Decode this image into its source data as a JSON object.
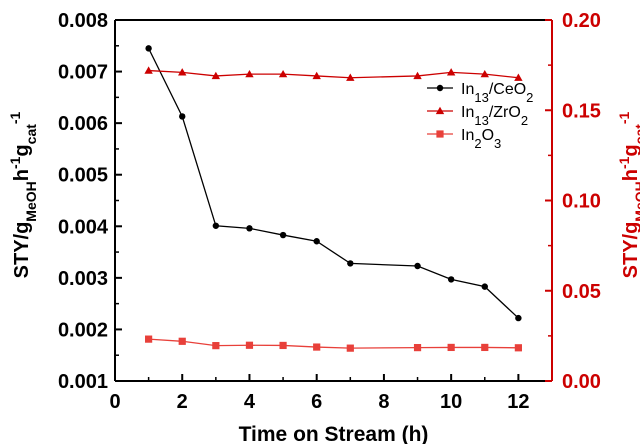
{
  "chart_data": {
    "type": "line",
    "xlabel": "Time on Stream (h)",
    "ylabel_left": {
      "base": "STY/g",
      "sub1": "MeOH",
      "mid1": "h",
      "sup1": "-1",
      "mid2": "g",
      "sub2": "cat",
      "sup2": "-1"
    },
    "ylabel_right": {
      "base": "STY/g",
      "sub1": "MeOH",
      "mid1": "h",
      "sup1": "-1",
      "mid2": "g",
      "sub2": "cat",
      "sup2": "-1"
    },
    "xlim": [
      0,
      13
    ],
    "ylim_left": [
      0.001,
      0.008
    ],
    "ylim_right": [
      0.0,
      0.2
    ],
    "x_ticks": [
      "0",
      "2",
      "4",
      "6",
      "8",
      "10",
      "12"
    ],
    "y_left_ticks": [
      "0.001",
      "0.002",
      "0.003",
      "0.004",
      "0.005",
      "0.006",
      "0.007",
      "0.008"
    ],
    "y_right_ticks": [
      "0.00",
      "0.05",
      "0.10",
      "0.15",
      "0.20"
    ],
    "right_axis_color": "#cc0000",
    "legend_position": "top-right",
    "series": [
      {
        "name": "In13/CeO2",
        "label_parts": [
          {
            "t": "In"
          },
          {
            "t": "13",
            "sub": true
          },
          {
            "t": "/CeO"
          },
          {
            "t": "2",
            "sub": true
          }
        ],
        "axis": "left",
        "color": "#000000",
        "marker": "circle",
        "x": [
          1,
          2,
          3,
          4,
          5,
          6,
          7,
          9,
          10,
          11,
          12
        ],
        "y": [
          0.00745,
          0.00613,
          0.00401,
          0.00396,
          0.00383,
          0.00371,
          0.00328,
          0.00323,
          0.00297,
          0.00283,
          0.00222
        ]
      },
      {
        "name": "In13/ZrO2",
        "label_parts": [
          {
            "t": "In"
          },
          {
            "t": "13",
            "sub": true
          },
          {
            "t": "/ZrO"
          },
          {
            "t": "2",
            "sub": true
          }
        ],
        "axis": "right",
        "color": "#cc0000",
        "marker": "triangle",
        "x": [
          1,
          2,
          3,
          4,
          5,
          6,
          7,
          9,
          10,
          11,
          12
        ],
        "y": [
          0.172,
          0.171,
          0.169,
          0.17,
          0.17,
          0.169,
          0.168,
          0.169,
          0.171,
          0.17,
          0.168
        ]
      },
      {
        "name": "In2O3",
        "label_parts": [
          {
            "t": "In"
          },
          {
            "t": "2",
            "sub": true
          },
          {
            "t": "O"
          },
          {
            "t": "3",
            "sub": true
          }
        ],
        "axis": "right",
        "color": "#e8403a",
        "marker": "square",
        "x": [
          1,
          2,
          3,
          4,
          5,
          6,
          7,
          9,
          10,
          11,
          12
        ],
        "y": [
          0.0232,
          0.022,
          0.0196,
          0.0198,
          0.0197,
          0.0188,
          0.0182,
          0.0185,
          0.0186,
          0.0186,
          0.0184
        ]
      }
    ]
  }
}
